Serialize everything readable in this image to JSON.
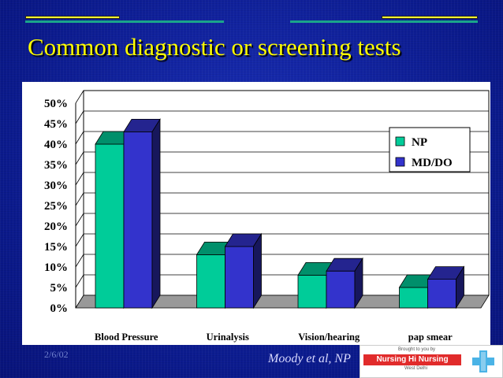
{
  "slide": {
    "title": "Common diagnostic or screening tests",
    "date": "2/6/02",
    "credit": "Moody et al, NP",
    "logo": {
      "line1": "Brought to you by",
      "brand": "Nursing Hi Nursing",
      "line2": "West Delhi"
    }
  },
  "colors": {
    "np": "#00cc99",
    "md_do": "#3333cc",
    "background": "#0b1a8c",
    "title": "#ffff00"
  },
  "chart_data": {
    "type": "bar",
    "categories": [
      "Blood Pressure",
      "Urinalysis",
      "Vision/hearing",
      "pap smear"
    ],
    "series": [
      {
        "name": "NP",
        "values": [
          40,
          13,
          8,
          5
        ]
      },
      {
        "name": "MD/DO",
        "values": [
          43,
          15,
          9,
          7
        ]
      }
    ],
    "ylim": [
      0,
      50
    ],
    "yticks": [
      "0%",
      "5%",
      "10%",
      "15%",
      "20%",
      "25%",
      "30%",
      "35%",
      "40%",
      "45%",
      "50%"
    ],
    "grid": true,
    "legend_position": "right",
    "style": "3d"
  }
}
